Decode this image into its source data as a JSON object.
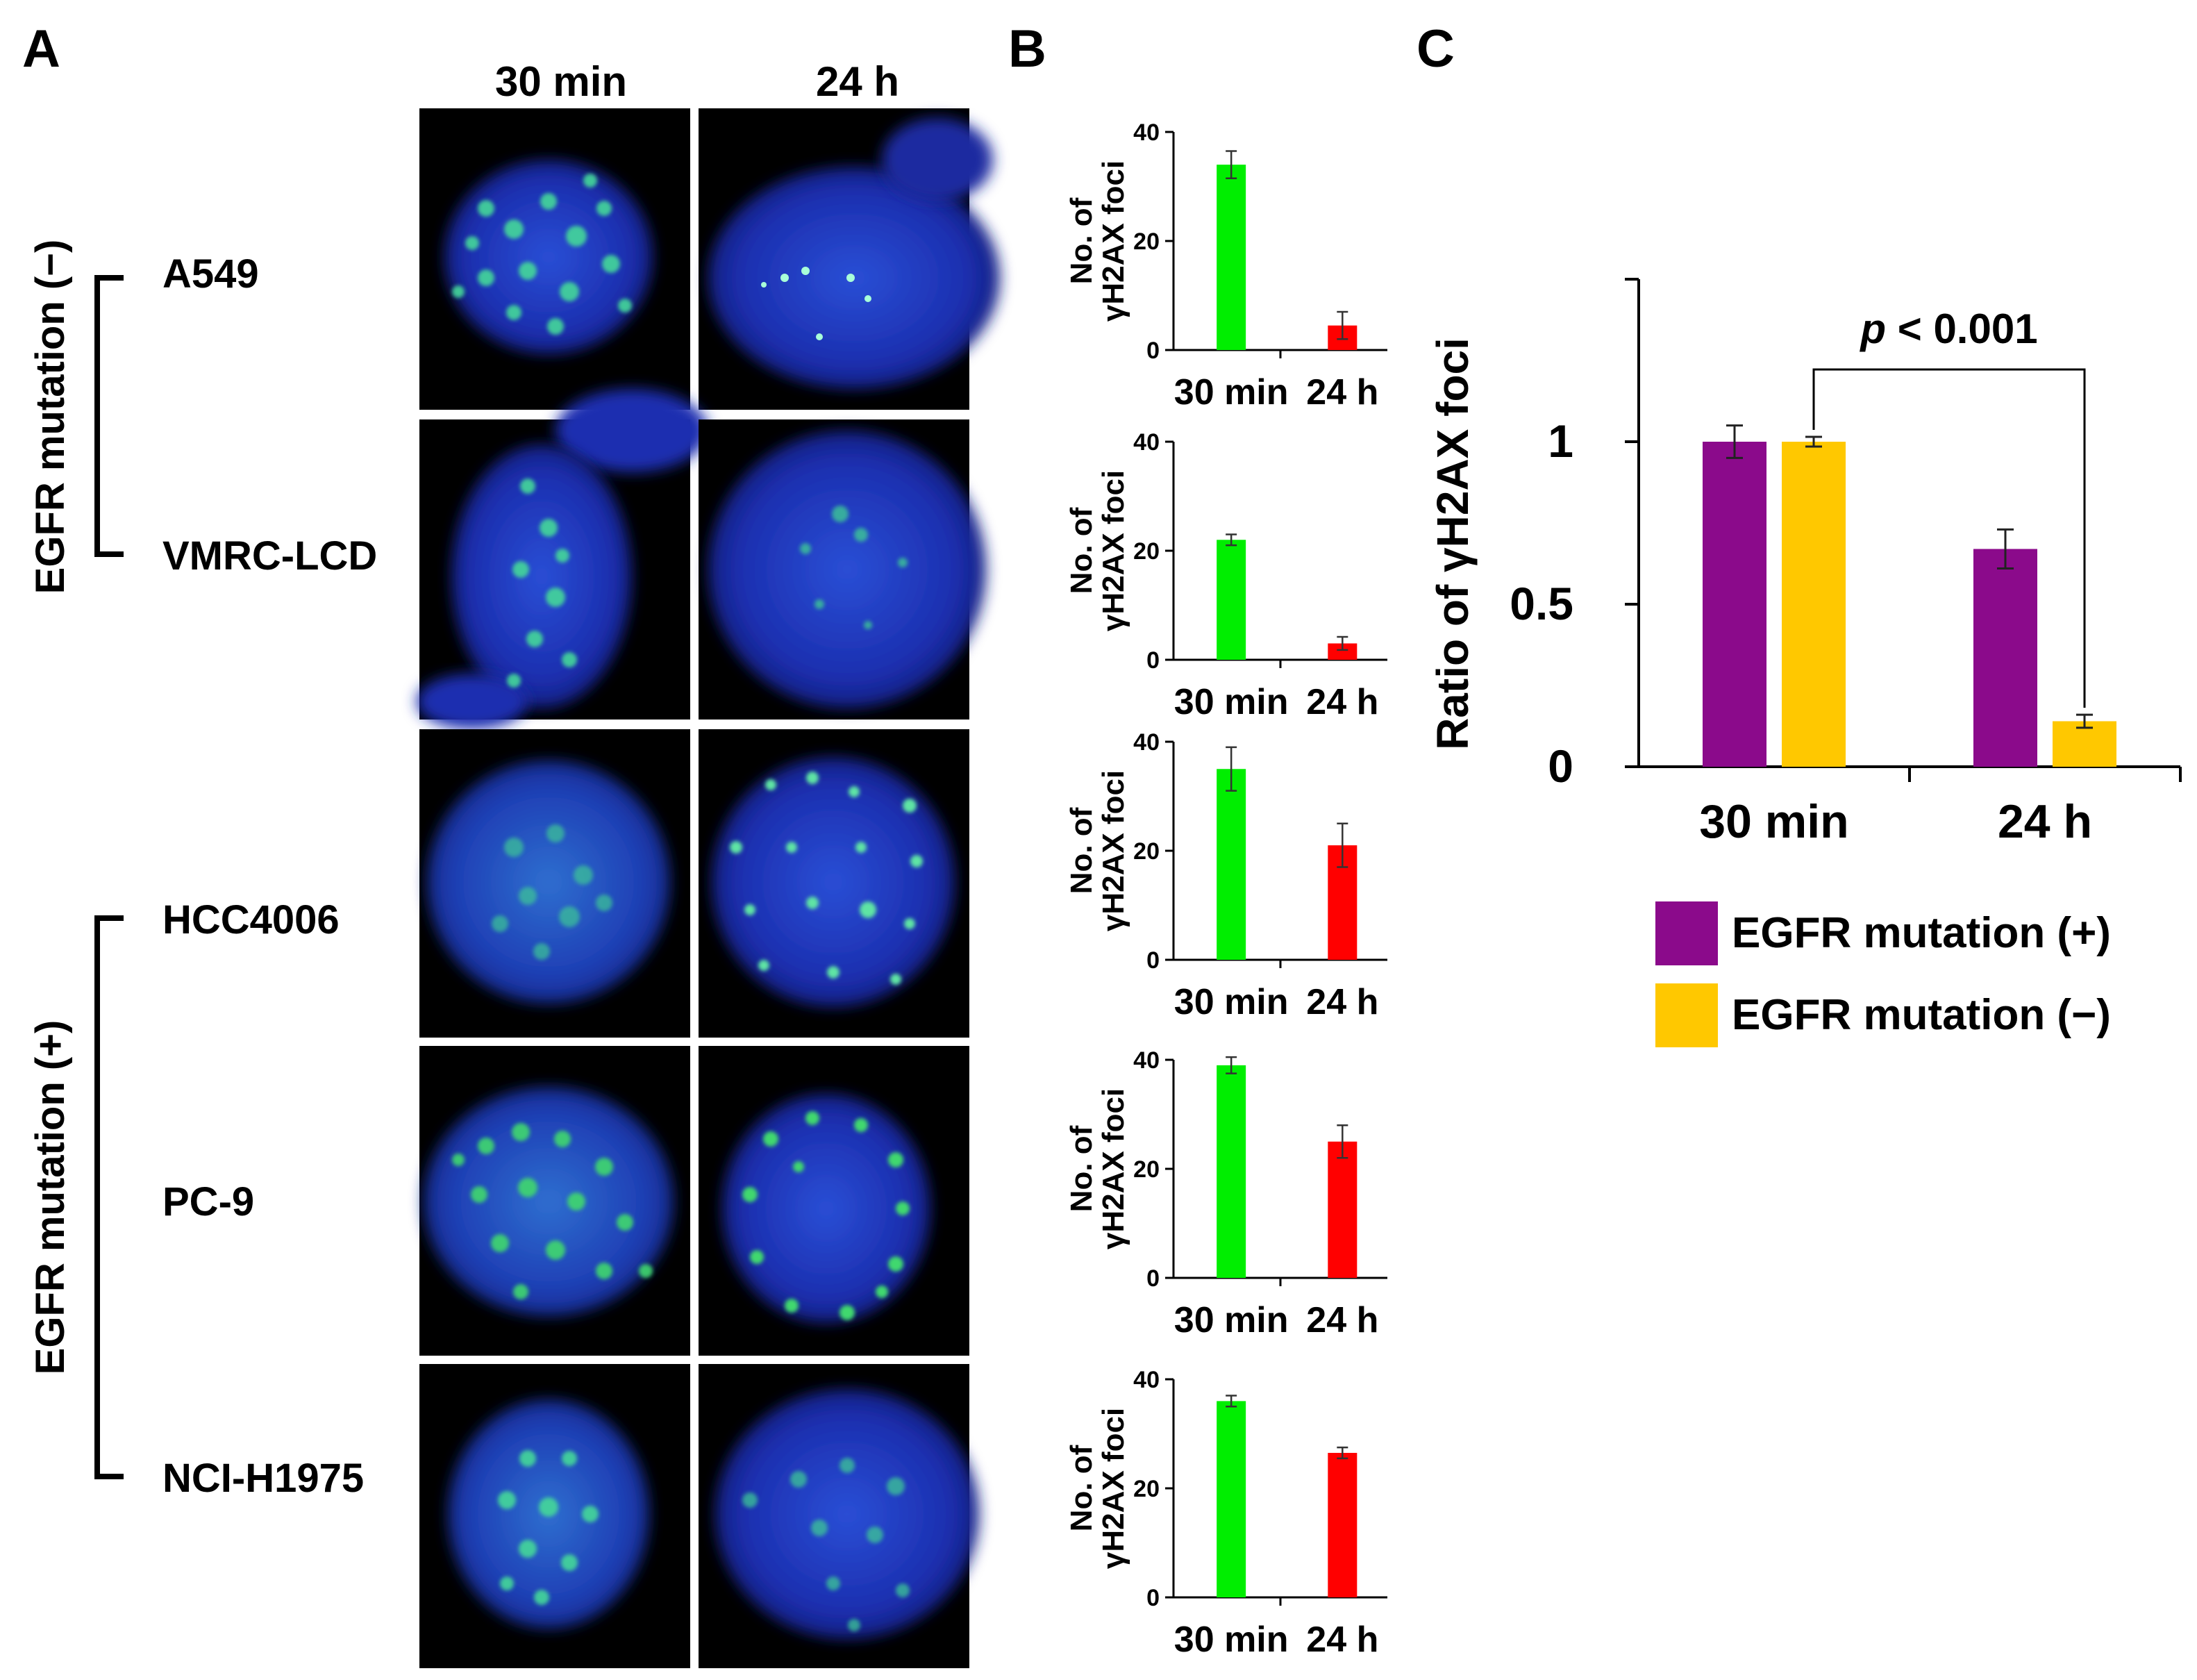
{
  "panels": {
    "a_label": "A",
    "b_label": "B",
    "c_label": "C"
  },
  "micrographs": {
    "columns": [
      "30 min",
      "24 h"
    ],
    "rows": [
      "A549",
      "VMRC-LCD",
      "HCC4006",
      "PC-9",
      "NCI-H1975"
    ],
    "groups": [
      {
        "label": "EGFR mutation (−)",
        "rows": [
          "A549",
          "VMRC-LCD"
        ]
      },
      {
        "label": "EGFR mutation (+)",
        "rows": [
          "HCC4006",
          "PC-9",
          "NCI-H1975"
        ]
      }
    ]
  },
  "colors": {
    "green": "#00ee00",
    "red": "#ff0000",
    "purple": "#8b0a8b",
    "yellow": "#ffc800",
    "nucleus_blue": "#1a2fbf",
    "foci_green": "#39d68c"
  },
  "chart_data": [
    {
      "type": "bar",
      "panel": "B",
      "row": "A549",
      "categories": [
        "30 min",
        "24 h"
      ],
      "values": [
        34,
        4.5
      ],
      "errors": [
        2.5,
        2.5
      ],
      "bar_colors": [
        "green",
        "red"
      ],
      "ylabel": "No. of γH2AX foci",
      "ylim": [
        0,
        40
      ],
      "yticks": [
        0,
        20,
        40
      ]
    },
    {
      "type": "bar",
      "panel": "B",
      "row": "VMRC-LCD",
      "categories": [
        "30 min",
        "24 h"
      ],
      "values": [
        22,
        3
      ],
      "errors": [
        1,
        1.2
      ],
      "bar_colors": [
        "green",
        "red"
      ],
      "ylabel": "No. of γH2AX foci",
      "ylim": [
        0,
        40
      ],
      "yticks": [
        0,
        20,
        40
      ]
    },
    {
      "type": "bar",
      "panel": "B",
      "row": "HCC4006",
      "categories": [
        "30 min",
        "24 h"
      ],
      "values": [
        35,
        21
      ],
      "errors": [
        4,
        4
      ],
      "bar_colors": [
        "green",
        "red"
      ],
      "ylabel": "No. of γH2AX foci",
      "ylim": [
        0,
        40
      ],
      "yticks": [
        0,
        20,
        40
      ]
    },
    {
      "type": "bar",
      "panel": "B",
      "row": "PC-9",
      "categories": [
        "30 min",
        "24 h"
      ],
      "values": [
        39,
        25
      ],
      "errors": [
        1.5,
        3
      ],
      "bar_colors": [
        "green",
        "red"
      ],
      "ylabel": "No. of γH2AX foci",
      "ylim": [
        0,
        40
      ],
      "yticks": [
        0,
        20,
        40
      ]
    },
    {
      "type": "bar",
      "panel": "B",
      "row": "NCI-H1975",
      "categories": [
        "30 min",
        "24 h"
      ],
      "values": [
        36,
        26.5
      ],
      "errors": [
        1,
        1
      ],
      "bar_colors": [
        "green",
        "red"
      ],
      "ylabel": "No. of γH2AX foci",
      "ylim": [
        0,
        40
      ],
      "yticks": [
        0,
        20,
        40
      ]
    },
    {
      "type": "bar",
      "panel": "C",
      "categories": [
        "30 min",
        "24 h"
      ],
      "series": [
        {
          "name": "EGFR mutation (+)",
          "color": "purple",
          "values": [
            1.0,
            0.67
          ],
          "errors": [
            0.05,
            0.06
          ]
        },
        {
          "name": "EGFR mutation (−)",
          "color": "yellow",
          "values": [
            1.0,
            0.14
          ],
          "errors": [
            0.015,
            0.02
          ]
        }
      ],
      "ylabel": "Ratio of γH2AX foci",
      "ylim": [
        0,
        1.5
      ],
      "yticks": [
        0,
        0.5,
        1
      ],
      "ytick_labels": [
        "0",
        "0.5",
        "1"
      ],
      "annotation": {
        "p_letter": "p",
        "rest": " < 0.001"
      },
      "legend_position": "bottom"
    }
  ]
}
